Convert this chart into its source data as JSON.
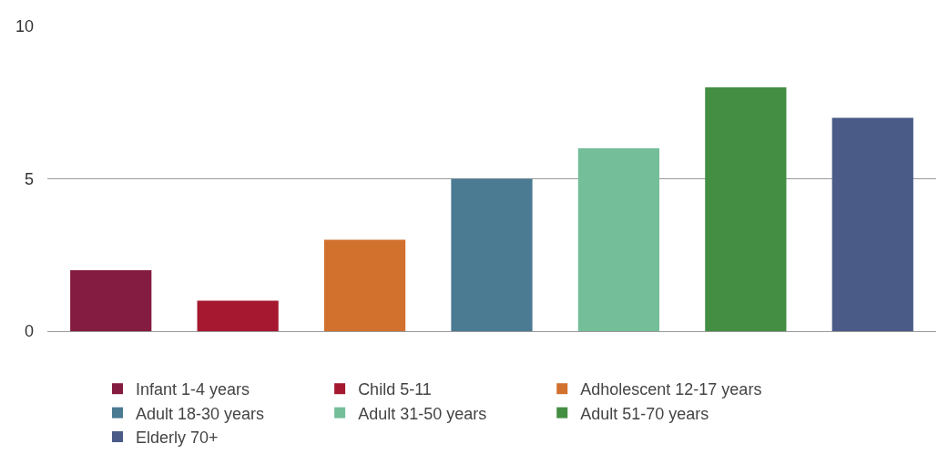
{
  "chart_data": {
    "type": "bar",
    "categories": [
      null,
      null,
      null,
      null,
      null,
      null,
      null
    ],
    "series": [
      {
        "name": "Infant 1-4 years",
        "color": "#841b40",
        "values": [
          2,
          null,
          null,
          null,
          null,
          null,
          null
        ]
      },
      {
        "name": "Child 5-11",
        "color": "#a51830",
        "values": [
          null,
          1,
          null,
          null,
          null,
          null,
          null
        ]
      },
      {
        "name": "Adholescent 12-17 years",
        "color": "#d2702e",
        "values": [
          null,
          null,
          3,
          null,
          null,
          null,
          null
        ]
      },
      {
        "name": "Adult 18-30 years",
        "color": "#4b7a93",
        "values": [
          null,
          null,
          null,
          5,
          null,
          null,
          null
        ]
      },
      {
        "name": "Adult 31-50 years",
        "color": "#74be9a",
        "values": [
          null,
          null,
          null,
          null,
          6,
          null,
          null
        ]
      },
      {
        "name": "Adult 51-70 years",
        "color": "#438e43",
        "values": [
          null,
          null,
          null,
          null,
          null,
          8,
          null
        ]
      },
      {
        "name": "Elderly 70+",
        "color": "#4a5b88",
        "values": [
          null,
          null,
          null,
          null,
          null,
          null,
          7
        ]
      }
    ],
    "ylim": [
      0,
      10
    ],
    "yticks": [
      0,
      5,
      10
    ],
    "grid": "y",
    "legend": "bottom",
    "tick_labels": "y"
  }
}
